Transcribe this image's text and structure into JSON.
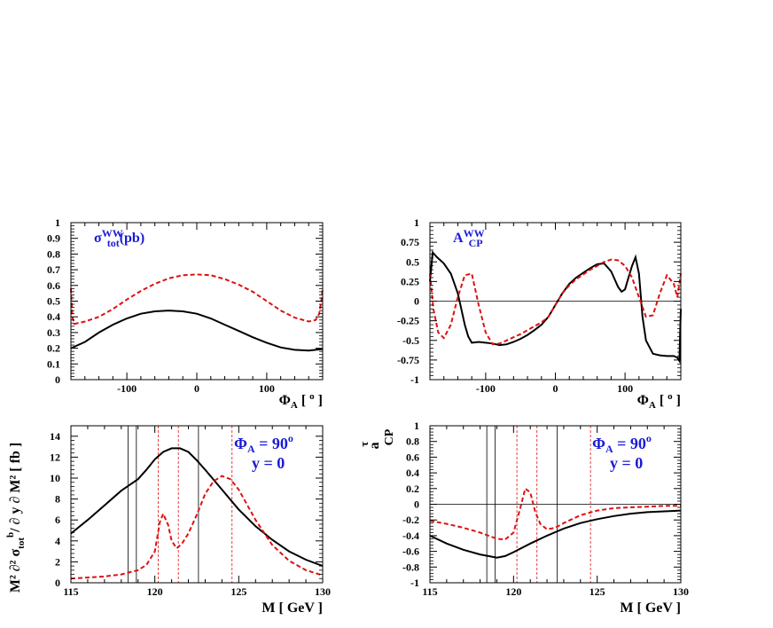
{
  "chart_data": [
    {
      "type": "line",
      "xlim": [
        -180,
        180
      ],
      "ylim": [
        0,
        1
      ],
      "xticks": [
        -100,
        0,
        100
      ],
      "xtick_labels": [
        "-100",
        "0",
        "100"
      ],
      "yticks": [
        0,
        0.1,
        0.2,
        0.3,
        0.4,
        0.5,
        0.6,
        0.7,
        0.8,
        0.9,
        1
      ],
      "ytick_labels": [
        "0",
        "0.1",
        "0.2",
        "0.3",
        "0.4",
        "0.5",
        "0.6",
        "0.7",
        "0.8",
        "0.9",
        "1"
      ],
      "xlabel": {
        "main": "Φ",
        "sub": "A",
        "post": " [ ",
        "sup": "o",
        "end": " ]"
      },
      "ylabel": "",
      "annotation": {
        "main": "σ",
        "sub": "tot",
        "sup": "WW",
        "post": "(pb)"
      },
      "series": [
        {
          "style": "solid",
          "color": "#000000",
          "x": [
            -180,
            -160,
            -140,
            -120,
            -100,
            -80,
            -60,
            -40,
            -20,
            0,
            20,
            40,
            60,
            80,
            100,
            120,
            140,
            160,
            170,
            180
          ],
          "y": [
            0.2,
            0.24,
            0.3,
            0.35,
            0.39,
            0.42,
            0.435,
            0.44,
            0.435,
            0.42,
            0.39,
            0.35,
            0.31,
            0.27,
            0.235,
            0.205,
            0.19,
            0.185,
            0.19,
            0.195
          ]
        },
        {
          "style": "dashed",
          "color": "#dd1111",
          "x": [
            -180,
            -178,
            -175,
            -160,
            -140,
            -120,
            -100,
            -80,
            -60,
            -40,
            -20,
            0,
            20,
            40,
            60,
            80,
            100,
            120,
            140,
            160,
            170,
            175,
            178,
            180
          ],
          "y": [
            0.58,
            0.4,
            0.355,
            0.37,
            0.4,
            0.45,
            0.51,
            0.565,
            0.61,
            0.645,
            0.665,
            0.67,
            0.665,
            0.64,
            0.605,
            0.56,
            0.5,
            0.44,
            0.395,
            0.37,
            0.38,
            0.42,
            0.5,
            0.58
          ]
        }
      ]
    },
    {
      "type": "line",
      "xlim": [
        -180,
        180
      ],
      "ylim": [
        -1,
        1
      ],
      "xticks": [
        -100,
        0,
        100
      ],
      "xtick_labels": [
        "-100",
        "0",
        "100"
      ],
      "yticks": [
        -1,
        -0.75,
        -0.5,
        -0.25,
        0,
        0.25,
        0.5,
        0.75,
        1
      ],
      "ytick_labels": [
        "-1",
        "-0.75",
        "-0.5",
        "-0.25",
        "0",
        "0.25",
        "0.5",
        "0.75",
        "1"
      ],
      "xlabel": {
        "main": "Φ",
        "sub": "A",
        "post": " [ ",
        "sup": "o",
        "end": " ]"
      },
      "ylabel": "",
      "zero_line": true,
      "annotation": {
        "main": "A",
        "sub": "CP",
        "sup": "WW",
        "post": ""
      },
      "series": [
        {
          "style": "solid",
          "color": "#000000",
          "x": [
            -180,
            -176,
            -170,
            -160,
            -150,
            -140,
            -135,
            -130,
            -125,
            -120,
            -110,
            -100,
            -90,
            -80,
            -70,
            -60,
            -50,
            -40,
            -30,
            -20,
            -10,
            0,
            10,
            20,
            30,
            40,
            50,
            60,
            70,
            80,
            90,
            95,
            100,
            105,
            110,
            115,
            120,
            125,
            130,
            140,
            150,
            160,
            170,
            175,
            178,
            180
          ],
          "y": [
            0.25,
            0.62,
            0.56,
            0.48,
            0.35,
            0.1,
            -0.1,
            -0.3,
            -0.45,
            -0.53,
            -0.52,
            -0.53,
            -0.54,
            -0.56,
            -0.55,
            -0.52,
            -0.48,
            -0.43,
            -0.37,
            -0.3,
            -0.2,
            -0.05,
            0.1,
            0.22,
            0.3,
            0.36,
            0.42,
            0.47,
            0.48,
            0.38,
            0.18,
            0.12,
            0.15,
            0.3,
            0.45,
            0.56,
            0.35,
            -0.2,
            -0.5,
            -0.67,
            -0.69,
            -0.7,
            -0.7,
            -0.72,
            -0.76,
            -0.1
          ]
        },
        {
          "style": "dashed",
          "color": "#dd1111",
          "x": [
            -180,
            -175,
            -168,
            -160,
            -150,
            -140,
            -130,
            -120,
            -110,
            -100,
            -90,
            -80,
            -70,
            -60,
            -50,
            -40,
            -30,
            -20,
            -10,
            0,
            10,
            20,
            30,
            40,
            50,
            60,
            70,
            80,
            90,
            100,
            110,
            120,
            130,
            140,
            150,
            160,
            170,
            175,
            180
          ],
          "y": [
            0.35,
            -0.1,
            -0.4,
            -0.47,
            -0.3,
            0.05,
            0.33,
            0.35,
            -0.05,
            -0.4,
            -0.55,
            -0.54,
            -0.5,
            -0.46,
            -0.42,
            -0.37,
            -0.32,
            -0.27,
            -0.2,
            -0.05,
            0.1,
            0.2,
            0.28,
            0.34,
            0.4,
            0.45,
            0.5,
            0.53,
            0.52,
            0.45,
            0.3,
            0.05,
            -0.2,
            -0.18,
            0.1,
            0.33,
            0.22,
            0.05,
            0.35
          ]
        }
      ]
    },
    {
      "type": "line",
      "xlim": [
        115,
        130
      ],
      "ylim": [
        0,
        15
      ],
      "xticks": [
        115,
        120,
        125,
        130
      ],
      "xtick_labels": [
        "115",
        "120",
        "125",
        "130"
      ],
      "yticks": [
        0,
        2,
        4,
        6,
        8,
        10,
        12,
        14
      ],
      "ytick_labels": [
        "0",
        "2",
        "4",
        "6",
        "8",
        "10",
        "12",
        "14"
      ],
      "xlabel": {
        "main": "M [ GeV ]",
        "sub": "",
        "post": "",
        "sup": "",
        "end": ""
      },
      "ylabel": {
        "text": "M² ∂² σ",
        "sub": "tot",
        "sup": "b",
        "post": "/ ∂ y ∂ M² [ fb ]"
      },
      "annotation_lines": [
        "Φ",
        "A",
        " = 90",
        "o",
        "y = 0"
      ],
      "vlines_solid": [
        118.4,
        118.9,
        122.6
      ],
      "vlines_dashed": [
        120.2,
        121.4,
        124.6
      ],
      "series": [
        {
          "style": "solid",
          "color": "#000000",
          "x": [
            115,
            116,
            117,
            118,
            119,
            119.5,
            120,
            120.5,
            121,
            121.5,
            122,
            122.5,
            123,
            124,
            125,
            126,
            127,
            128,
            129,
            130
          ],
          "y": [
            4.7,
            6.0,
            7.4,
            8.8,
            9.9,
            10.8,
            11.8,
            12.5,
            12.85,
            12.85,
            12.5,
            11.7,
            10.8,
            8.9,
            7.0,
            5.4,
            4.1,
            3.0,
            2.2,
            1.6
          ]
        },
        {
          "style": "dashed",
          "color": "#dd1111",
          "x": [
            115,
            116,
            117,
            118,
            119,
            119.5,
            120,
            120.3,
            120.5,
            120.8,
            121,
            121.3,
            121.6,
            122,
            122.5,
            123,
            123.5,
            124,
            124.5,
            125,
            126,
            127,
            128,
            129,
            130
          ],
          "y": [
            0.4,
            0.5,
            0.6,
            0.8,
            1.2,
            1.7,
            3.0,
            5.8,
            6.6,
            5.5,
            4.0,
            3.3,
            3.7,
            4.7,
            6.5,
            8.5,
            9.7,
            10.2,
            9.9,
            8.9,
            6.0,
            3.6,
            2.1,
            1.2,
            0.7
          ]
        }
      ]
    },
    {
      "type": "line",
      "xlim": [
        115,
        130
      ],
      "ylim": [
        -1,
        1
      ],
      "xticks": [
        115,
        120,
        125,
        130
      ],
      "xtick_labels": [
        "115",
        "120",
        "125",
        "130"
      ],
      "yticks": [
        -1,
        -0.8,
        -0.6,
        -0.4,
        -0.2,
        0,
        0.2,
        0.4,
        0.6,
        0.8,
        1
      ],
      "ytick_labels": [
        "-1",
        "-0.8",
        "-0.6",
        "-0.4",
        "-0.2",
        "0",
        "0.2",
        "0.4",
        "0.6",
        "0.8",
        "1"
      ],
      "xlabel": {
        "main": "M [ GeV ]",
        "sub": "",
        "post": "",
        "sup": "",
        "end": ""
      },
      "ylabel": {
        "text": "a",
        "sub": "CP",
        "sup": "τ",
        "post": ""
      },
      "zero_line": true,
      "annotation_lines": [
        "Φ",
        "A",
        " = 90",
        "o",
        "y = 0"
      ],
      "vlines_solid": [
        118.4,
        118.9,
        122.6
      ],
      "vlines_dashed": [
        120.2,
        121.4,
        124.6
      ],
      "series": [
        {
          "style": "solid",
          "color": "#000000",
          "x": [
            115,
            116,
            117,
            118,
            118.5,
            119,
            119.5,
            120,
            121,
            122,
            123,
            124,
            125,
            126,
            127,
            128,
            129,
            130
          ],
          "y": [
            -0.4,
            -0.5,
            -0.58,
            -0.64,
            -0.66,
            -0.68,
            -0.66,
            -0.61,
            -0.5,
            -0.4,
            -0.31,
            -0.24,
            -0.19,
            -0.15,
            -0.12,
            -0.1,
            -0.09,
            -0.08
          ]
        },
        {
          "style": "dashed",
          "color": "#dd1111",
          "x": [
            115,
            116,
            117,
            118,
            119,
            119.5,
            120,
            120.4,
            120.7,
            121,
            121.3,
            121.6,
            122,
            122.5,
            123,
            124,
            125,
            126,
            127,
            128,
            129,
            130
          ],
          "y": [
            -0.21,
            -0.25,
            -0.3,
            -0.36,
            -0.44,
            -0.45,
            -0.36,
            -0.05,
            0.2,
            0.15,
            -0.1,
            -0.25,
            -0.32,
            -0.3,
            -0.24,
            -0.14,
            -0.08,
            -0.05,
            -0.04,
            -0.03,
            -0.02,
            -0.02
          ]
        }
      ]
    }
  ]
}
